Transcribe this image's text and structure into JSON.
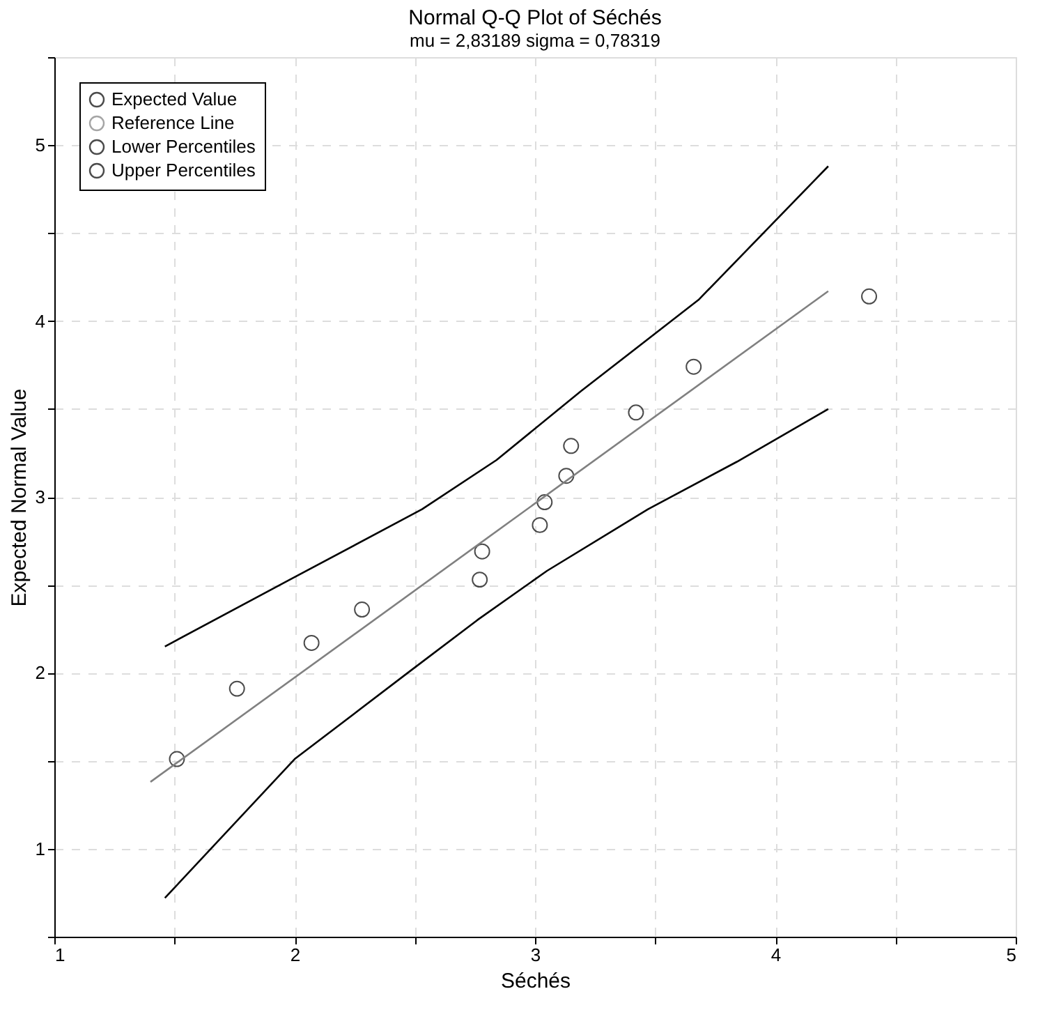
{
  "chart_data": {
    "type": "scatter",
    "title": "Normal Q-Q Plot of Séchés",
    "subtitle": "mu = 2,83189  sigma = 0,78319",
    "xlabel": "Séchés",
    "ylabel": "Expected Normal Value",
    "xlim": [
      1,
      5
    ],
    "ylim": [
      0.5,
      5.5
    ],
    "xticks": [
      1,
      {
        "value": 1.5,
        "label": null
      },
      2,
      {
        "value": 2.5,
        "label": null
      },
      3,
      {
        "value": 3.5,
        "label": null
      },
      4,
      {
        "value": 4.5,
        "label": null
      },
      5
    ],
    "yticks": [
      {
        "value": 0.5,
        "label": null
      },
      1,
      {
        "value": 1.5,
        "label": null
      },
      2,
      {
        "value": 2.5,
        "label": null
      },
      3,
      {
        "value": 3.5,
        "label": null
      },
      4,
      {
        "value": 4.5,
        "label": null
      },
      5,
      {
        "value": 5.5,
        "label": null
      }
    ],
    "grid": true,
    "legend": "top left",
    "series": [
      {
        "name": "Expected Value",
        "marker": "circle",
        "color": "#000000",
        "x": [
          1.51,
          1.76,
          2.07,
          2.28,
          2.77,
          2.78,
          3.02,
          3.04,
          3.13,
          3.15,
          3.42,
          3.66,
          4.39
        ],
        "values": [
          1.51,
          1.91,
          2.17,
          2.36,
          2.53,
          2.69,
          2.84,
          2.97,
          3.12,
          3.29,
          3.48,
          3.74,
          4.14
        ]
      },
      {
        "name": "Reference Line",
        "type": "line",
        "color": "#808080",
        "x": [
          1.4,
          4.22
        ],
        "values": [
          1.38,
          4.17
        ]
      },
      {
        "name": "Lower Percentiles",
        "type": "line",
        "color": "#000000",
        "x": [
          1.46,
          2.0,
          2.48,
          2.76,
          3.05,
          3.47,
          3.84,
          4.22
        ],
        "values": [
          0.72,
          1.51,
          2.01,
          2.3,
          2.58,
          2.93,
          3.2,
          3.5
        ]
      },
      {
        "name": "Upper Percentiles",
        "type": "line",
        "color": "#000000",
        "x": [
          1.46,
          1.98,
          2.53,
          2.84,
          3.19,
          3.68,
          4.22
        ],
        "values": [
          2.15,
          2.53,
          2.93,
          3.21,
          3.6,
          4.12,
          4.88
        ]
      }
    ]
  }
}
